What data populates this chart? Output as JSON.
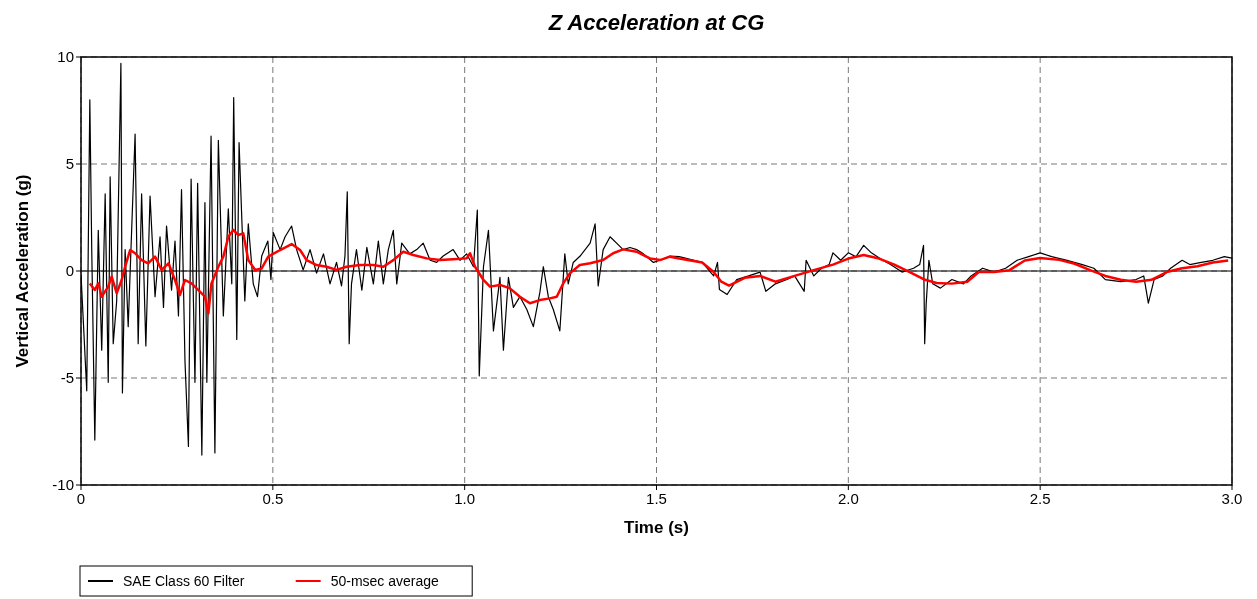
{
  "chart_data": {
    "type": "line",
    "title": "Z Acceleration at CG",
    "xlabel": "Time (s)",
    "ylabel": "Vertical Acceleration (g)",
    "xlim": [
      0,
      3
    ],
    "xticks": [
      0,
      0.5,
      {
        "value": 1,
        "label": "1.0"
      },
      1.5,
      {
        "value": 2,
        "label": "2.0"
      },
      2.5,
      {
        "value": 3,
        "label": "3.0"
      }
    ],
    "ylim": [
      -10,
      10
    ],
    "yticks": [
      -10,
      -5,
      0,
      5,
      10
    ],
    "grid": true,
    "legend": "bottom left",
    "line_style": "solid",
    "ref_lines": [
      {
        "axis": "y",
        "value": 0,
        "color": "#000000"
      }
    ],
    "series": [
      {
        "name": "SAE Class 60 Filter",
        "color": "#000000",
        "x": [
          0,
          0.015,
          0.023,
          0.028,
          0.036,
          0.045,
          0.054,
          0.063,
          0.071,
          0.076,
          0.084,
          0.093,
          0.104,
          0.108,
          0.115,
          0.123,
          0.141,
          0.149,
          0.158,
          0.169,
          0.18,
          0.193,
          0.206,
          0.215,
          0.223,
          0.236,
          0.245,
          0.254,
          0.262,
          0.271,
          0.28,
          0.287,
          0.297,
          0.304,
          0.315,
          0.323,
          0.328,
          0.339,
          0.349,
          0.358,
          0.371,
          0.384,
          0.393,
          0.398,
          0.406,
          0.412,
          0.419,
          0.427,
          0.436,
          0.449,
          0.46,
          0.471,
          0.487,
          0.495,
          0.501,
          0.519,
          0.532,
          0.549,
          0.562,
          0.579,
          0.597,
          0.614,
          0.632,
          0.649,
          0.666,
          0.679,
          0.688,
          0.694,
          0.699,
          0.705,
          0.718,
          0.732,
          0.745,
          0.762,
          0.775,
          0.788,
          0.801,
          0.814,
          0.823,
          0.836,
          0.857,
          0.875,
          0.892,
          0.91,
          0.927,
          0.944,
          0.97,
          0.988,
          1.005,
          1.014,
          1.023,
          1.033,
          1.038,
          1.049,
          1.062,
          1.075,
          1.092,
          1.101,
          1.114,
          1.127,
          1.144,
          1.162,
          1.179,
          1.196,
          1.205,
          1.218,
          1.231,
          1.248,
          1.261,
          1.27,
          1.283,
          1.301,
          1.327,
          1.34,
          1.348,
          1.361,
          1.379,
          1.396,
          1.413,
          1.431,
          1.448,
          1.466,
          1.492,
          1.509,
          1.535,
          1.559,
          1.619,
          1.649,
          1.659,
          1.664,
          1.684,
          1.709,
          1.74,
          1.77,
          1.785,
          1.81,
          1.84,
          1.86,
          1.885,
          1.89,
          1.91,
          1.93,
          1.95,
          1.96,
          1.98,
          2,
          2.02,
          2.04,
          2.06,
          2.09,
          2.11,
          2.14,
          2.17,
          2.186,
          2.196,
          2.199,
          2.203,
          2.21,
          2.22,
          2.24,
          2.27,
          2.3,
          2.32,
          2.35,
          2.38,
          2.41,
          2.44,
          2.47,
          2.5,
          2.53,
          2.57,
          2.61,
          2.64,
          2.67,
          2.71,
          2.75,
          2.77,
          2.782,
          2.797,
          2.82,
          2.84,
          2.87,
          2.89,
          2.92,
          2.95,
          2.98,
          3
        ],
        "values": [
          -0.15,
          -5.6,
          8.0,
          1.0,
          -7.9,
          1.9,
          -3.7,
          3.6,
          -5.2,
          4.4,
          -3.4,
          -1.4,
          9.7,
          -5.7,
          1.0,
          -2.6,
          6.4,
          -3.4,
          3.6,
          -3.5,
          3.5,
          -1.2,
          1.6,
          -1.7,
          2.1,
          -0.9,
          1.4,
          -2.1,
          3.8,
          -4.2,
          -8.2,
          4.3,
          -5.2,
          4.1,
          -8.6,
          3.2,
          -5.2,
          6.3,
          -8.5,
          6.1,
          -2.1,
          2.9,
          -0.6,
          8.1,
          -3.2,
          6.0,
          2.5,
          -1.4,
          2.2,
          -0.6,
          -1.2,
          0.7,
          1.4,
          -0.4,
          1.8,
          1.0,
          1.6,
          2.1,
          1.0,
          0.05,
          1.0,
          -0.1,
          0.8,
          -0.6,
          0.4,
          -0.7,
          0.7,
          3.7,
          -3.4,
          -0.6,
          1.0,
          -0.9,
          1.1,
          -0.6,
          1.4,
          -0.6,
          1.0,
          1.9,
          -0.6,
          1.3,
          0.8,
          1.0,
          1.3,
          0.5,
          0.4,
          0.7,
          1.0,
          0.5,
          0.8,
          0.5,
          0.2,
          2.85,
          -4.9,
          0.2,
          1.9,
          -2.8,
          -0.3,
          -3.7,
          -0.3,
          -1.7,
          -1.2,
          -1.8,
          -2.6,
          -1.0,
          0.2,
          -1.2,
          -1.8,
          -2.8,
          0.8,
          -0.6,
          0.4,
          0.7,
          1.3,
          2.2,
          -0.7,
          1.0,
          1.6,
          1.3,
          1.0,
          1.1,
          1.0,
          0.8,
          0.4,
          0.5,
          0.7,
          0.67,
          0.4,
          -0.23,
          0.4,
          -0.86,
          -1.1,
          -0.4,
          -0.23,
          -0.05,
          -0.95,
          -0.6,
          -0.4,
          -0.23,
          -0.95,
          0.5,
          -0.23,
          0.13,
          0.3,
          0.85,
          0.5,
          0.85,
          0.67,
          1.2,
          0.85,
          0.5,
          0.3,
          -0.05,
          0.13,
          0.3,
          1.2,
          -3.4,
          -1.5,
          0.5,
          -0.6,
          -0.8,
          -0.4,
          -0.6,
          -0.23,
          0.13,
          -0.05,
          0.13,
          0.5,
          0.67,
          0.85,
          0.67,
          0.5,
          0.3,
          0.13,
          -0.4,
          -0.5,
          -0.4,
          -0.23,
          -1.5,
          -0.4,
          -0.23,
          0.13,
          0.5,
          0.3,
          0.4,
          0.5,
          0.67,
          0.6
        ]
      },
      {
        "name": "50-msec average",
        "color": "#ff0000",
        "x": [
          0.023,
          0.036,
          0.045,
          0.054,
          0.071,
          0.08,
          0.093,
          0.106,
          0.115,
          0.128,
          0.141,
          0.158,
          0.175,
          0.193,
          0.21,
          0.228,
          0.245,
          0.258,
          0.271,
          0.288,
          0.306,
          0.323,
          0.332,
          0.34,
          0.358,
          0.371,
          0.384,
          0.397,
          0.41,
          0.423,
          0.436,
          0.454,
          0.471,
          0.488,
          0.519,
          0.549,
          0.571,
          0.588,
          0.614,
          0.64,
          0.666,
          0.692,
          0.727,
          0.762,
          0.788,
          0.814,
          0.84,
          0.866,
          0.901,
          0.936,
          0.97,
          1.005,
          1.014,
          1.027,
          1.049,
          1.066,
          1.092,
          1.118,
          1.144,
          1.17,
          1.196,
          1.222,
          1.24,
          1.257,
          1.274,
          1.3,
          1.327,
          1.361,
          1.387,
          1.413,
          1.448,
          1.483,
          1.509,
          1.535,
          1.559,
          1.619,
          1.649,
          1.669,
          1.689,
          1.73,
          1.77,
          1.81,
          1.86,
          1.91,
          1.96,
          2,
          2.04,
          2.08,
          2.12,
          2.16,
          2.2,
          2.23,
          2.27,
          2.31,
          2.34,
          2.38,
          2.42,
          2.46,
          2.5,
          2.55,
          2.59,
          2.63,
          2.67,
          2.71,
          2.75,
          2.79,
          2.83,
          2.87,
          2.91,
          2.95,
          2.99
        ],
        "values": [
          -0.58,
          -0.89,
          -0.58,
          -1.2,
          -0.73,
          -0.26,
          -1.04,
          -0.42,
          0.2,
          0.98,
          0.83,
          0.51,
          0.36,
          0.67,
          0.05,
          0.36,
          -0.42,
          -1.12,
          -0.42,
          -0.58,
          -0.89,
          -1.2,
          -1.98,
          -0.58,
          0.2,
          0.67,
          1.6,
          1.92,
          1.68,
          1.76,
          0.51,
          0.05,
          0.12,
          0.67,
          0.98,
          1.26,
          0.98,
          0.51,
          0.28,
          0.2,
          0.05,
          0.2,
          0.28,
          0.28,
          0.2,
          0.51,
          0.9,
          0.75,
          0.59,
          0.51,
          0.55,
          0.59,
          0.83,
          0.2,
          -0.42,
          -0.73,
          -0.65,
          -0.81,
          -1.2,
          -1.51,
          -1.36,
          -1.28,
          -1.2,
          -0.58,
          -0.11,
          0.28,
          0.36,
          0.51,
          0.83,
          1.01,
          0.9,
          0.59,
          0.51,
          0.67,
          0.58,
          0.4,
          -0.05,
          -0.5,
          -0.68,
          -0.32,
          -0.23,
          -0.5,
          -0.23,
          0.04,
          0.3,
          0.58,
          0.75,
          0.58,
          0.3,
          -0.05,
          -0.41,
          -0.56,
          -0.59,
          -0.5,
          -0.05,
          -0.05,
          0.04,
          0.49,
          0.61,
          0.52,
          0.34,
          0.04,
          -0.23,
          -0.41,
          -0.5,
          -0.41,
          -0.05,
          0.13,
          0.22,
          0.4,
          0.49
        ]
      }
    ]
  }
}
